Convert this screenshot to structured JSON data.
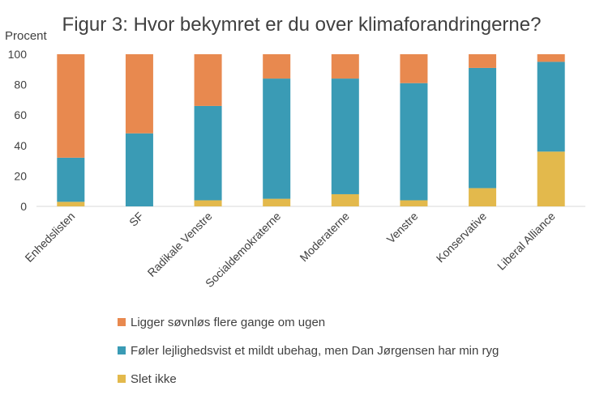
{
  "chart_data": {
    "type": "bar",
    "stacked": true,
    "title": "Figur 3: Hvor bekymret er du over klimaforandringerne?",
    "ylabel": "Procent",
    "xlabel": "",
    "ylim": [
      0,
      100
    ],
    "yticks": [
      0,
      20,
      40,
      60,
      80,
      100
    ],
    "grid": false,
    "legend_position": "bottom",
    "categories": [
      "Enhedslisten",
      "SF",
      "Radikale Venstre",
      "Socialdemokraterne",
      "Moderaterne",
      "Venstre",
      "Konservative",
      "Liberal Alliance"
    ],
    "series": [
      {
        "name": "Slet ikke",
        "color": "#e3b94c",
        "values": [
          3,
          0,
          4,
          5,
          8,
          4,
          12,
          36
        ]
      },
      {
        "name": "Føler lejlighedsvist et mildt ubehag, men Dan Jørgensen har min ryg",
        "color": "#3a9bb5",
        "values": [
          29,
          48,
          62,
          79,
          76,
          77,
          79,
          59
        ]
      },
      {
        "name": "Ligger søvnløs flere gange om ugen",
        "color": "#e8894f",
        "values": [
          68,
          52,
          34,
          16,
          16,
          19,
          9,
          5
        ]
      }
    ]
  }
}
